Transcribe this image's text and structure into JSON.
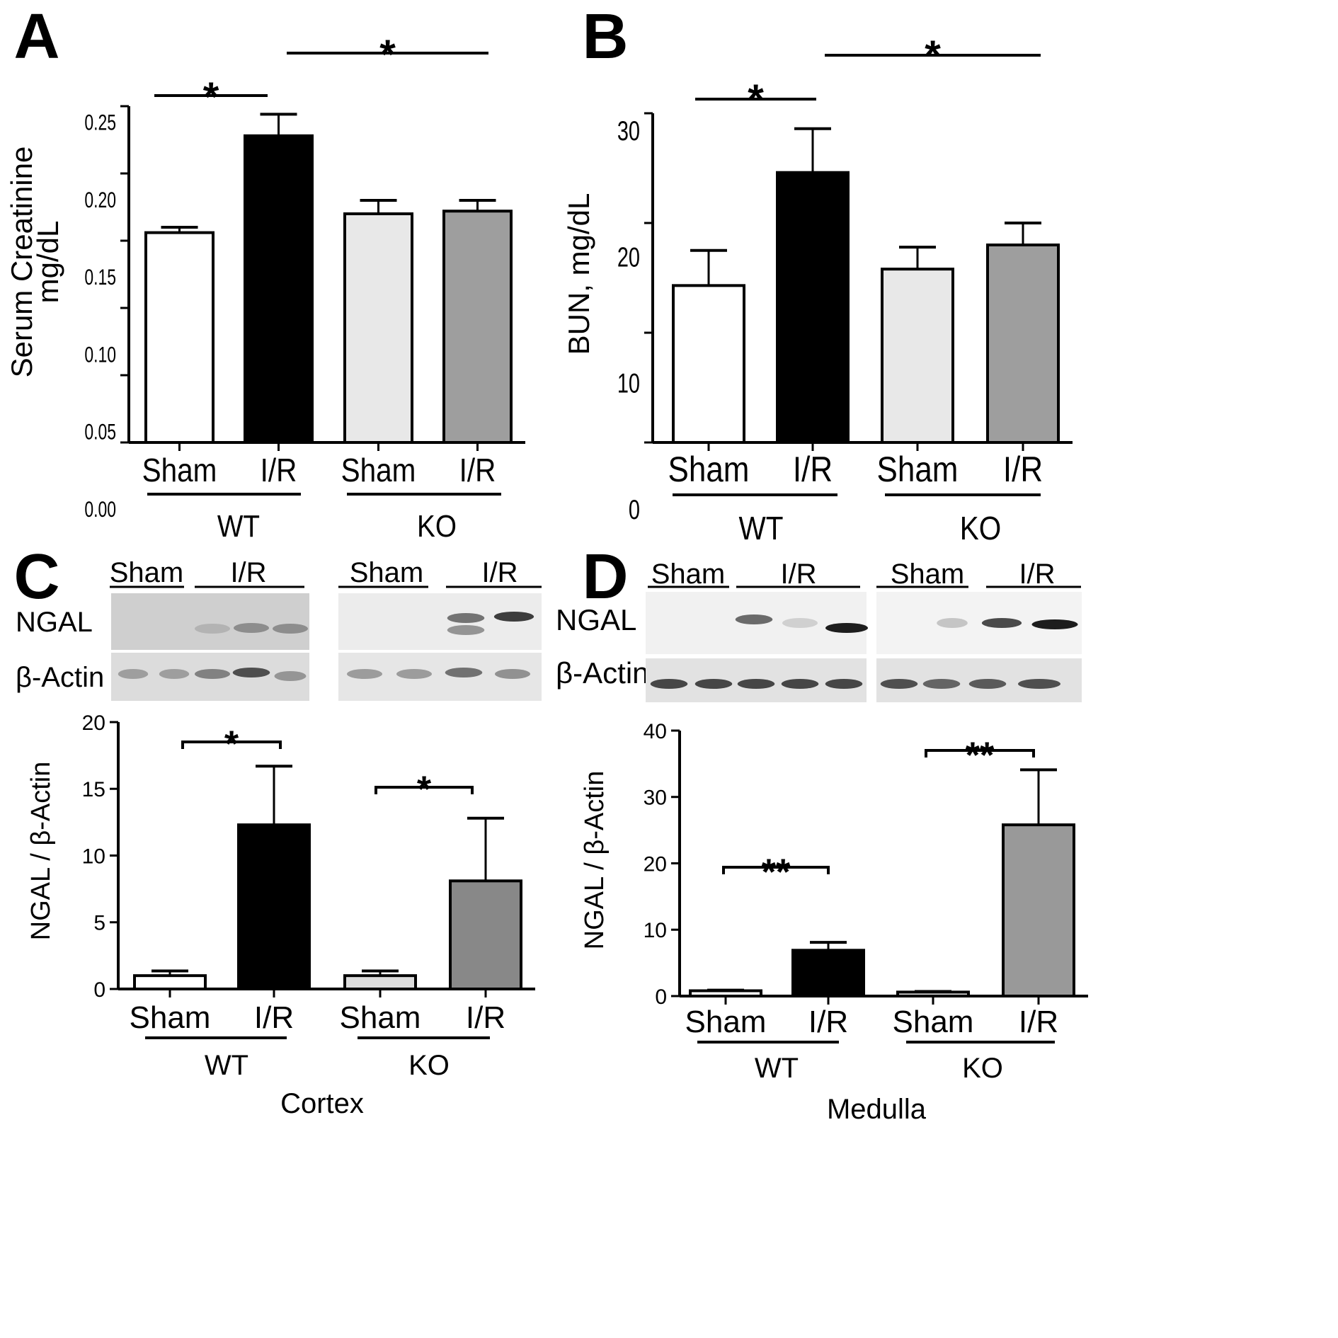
{
  "chart_data": [
    {
      "panel": "A",
      "type": "bar",
      "categories": [
        "Sham",
        "I/R",
        "Sham",
        "I/R"
      ],
      "groups": [
        "WT",
        "KO"
      ],
      "values": [
        0.156,
        0.228,
        0.17,
        0.172
      ],
      "errors": [
        0.004,
        0.016,
        0.01,
        0.008
      ],
      "colors": [
        "#ffffff",
        "#000000",
        "#e8e8e8",
        "#9e9e9e"
      ],
      "ylabel": [
        "Serum Creatinine",
        "mg/dL"
      ],
      "ylim": [
        0,
        0.25
      ],
      "yticks": [
        "0.00",
        "0.05",
        "0.10",
        "0.15",
        "0.20",
        "0.25"
      ],
      "significance": [
        {
          "bars": [
            0,
            1
          ],
          "label": "*"
        },
        {
          "bars": [
            1,
            3
          ],
          "label": "*"
        }
      ]
    },
    {
      "panel": "B",
      "type": "bar",
      "categories": [
        "Sham",
        "I/R",
        "Sham",
        "I/R"
      ],
      "groups": [
        "WT",
        "KO"
      ],
      "values": [
        14.3,
        24.6,
        15.8,
        18.0
      ],
      "errors": [
        3.2,
        4.0,
        2.0,
        2.0
      ],
      "colors": [
        "#ffffff",
        "#000000",
        "#e8e8e8",
        "#9e9e9e"
      ],
      "ylabel": [
        "BUN, mg/dL"
      ],
      "ylim": [
        0,
        30
      ],
      "yticks": [
        "0",
        "10",
        "20",
        "30"
      ],
      "significance": [
        {
          "bars": [
            0,
            1
          ],
          "label": "*"
        },
        {
          "bars": [
            1,
            3
          ],
          "label": "*"
        }
      ]
    },
    {
      "panel": "C",
      "type": "bar",
      "categories": [
        "Sham",
        "I/R",
        "Sham",
        "I/R"
      ],
      "groups": [
        "WT",
        "KO"
      ],
      "values": [
        1.0,
        12.3,
        1.0,
        8.1
      ],
      "errors": [
        0.35,
        4.4,
        0.35,
        4.7
      ],
      "colors": [
        "#ffffff",
        "#000000",
        "#dcdcdc",
        "#888888"
      ],
      "ylabel": [
        "NGAL / β-Actin"
      ],
      "ylim": [
        0,
        20
      ],
      "yticks": [
        "0",
        "5",
        "10",
        "15",
        "20"
      ],
      "region": "Cortex",
      "significance": [
        {
          "bars": [
            0,
            1
          ],
          "label": "*"
        },
        {
          "bars": [
            2,
            3
          ],
          "label": "*"
        }
      ]
    },
    {
      "panel": "D",
      "type": "bar",
      "categories": [
        "Sham",
        "I/R",
        "Sham",
        "I/R"
      ],
      "groups": [
        "WT",
        "KO"
      ],
      "values": [
        0.8,
        6.9,
        0.6,
        25.8
      ],
      "errors": [
        0.1,
        1.2,
        0.1,
        8.3
      ],
      "colors": [
        "#ffffff",
        "#000000",
        "#dcdcdc",
        "#999999"
      ],
      "ylabel": [
        "NGAL / β-Actin"
      ],
      "ylim": [
        0,
        40
      ],
      "yticks": [
        "0",
        "10",
        "20",
        "30",
        "40"
      ],
      "region": "Medulla",
      "significance": [
        {
          "bars": [
            0,
            1
          ],
          "label": "**"
        },
        {
          "bars": [
            2,
            3
          ],
          "label": "**"
        }
      ]
    }
  ],
  "panel_letters": [
    "A",
    "B",
    "C",
    "D"
  ],
  "blots": [
    {
      "panel": "C",
      "group_labels": [
        "Sham",
        "I/R",
        "Sham",
        "I/R"
      ],
      "row_labels": [
        "NGAL",
        "β-Actin"
      ]
    },
    {
      "panel": "D",
      "group_labels": [
        "Sham",
        "I/R",
        "Sham",
        "I/R"
      ],
      "row_labels": [
        "NGAL",
        "β-Actin"
      ]
    }
  ]
}
